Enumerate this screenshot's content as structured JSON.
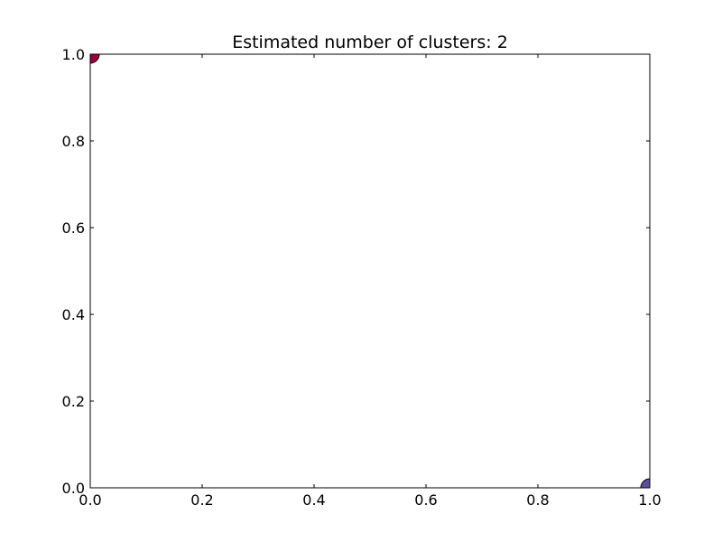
{
  "chart_data": {
    "type": "scatter",
    "title": "Estimated number of clusters: 2",
    "xlabel": "",
    "ylabel": "",
    "xlim": [
      0.0,
      1.0
    ],
    "ylim": [
      0.0,
      1.0
    ],
    "x_ticks": [
      "0.0",
      "0.2",
      "0.4",
      "0.6",
      "0.8",
      "1.0"
    ],
    "y_ticks": [
      "0.0",
      "0.2",
      "0.4",
      "0.6",
      "0.8",
      "1.0"
    ],
    "grid": false,
    "legend": "none",
    "points": [
      {
        "x": 0.0,
        "y": 1.0,
        "color": "#9e0142"
      },
      {
        "x": 1.0,
        "y": 0.0,
        "color": "#5e4fa2"
      }
    ]
  }
}
